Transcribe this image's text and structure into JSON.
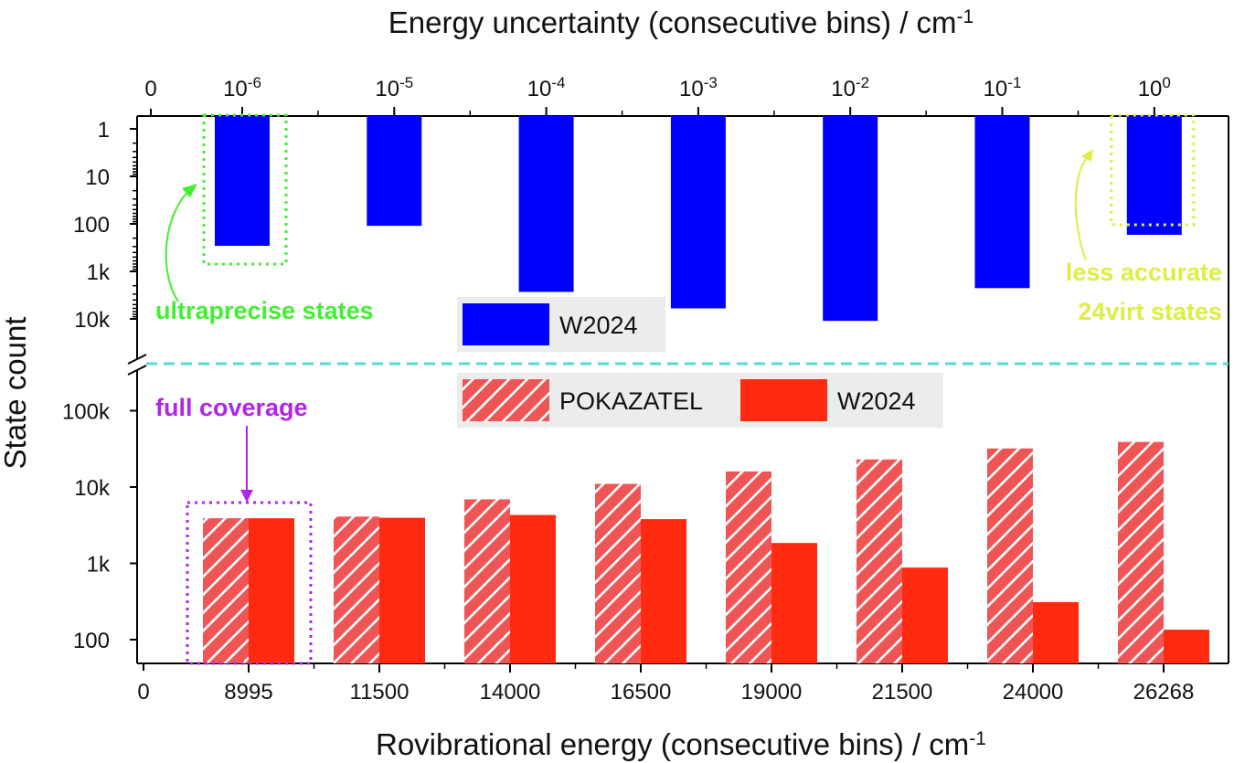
{
  "chart_data": {
    "type": "bar",
    "y_axis_title": "State count",
    "y_scale": "log",
    "axis_break": true,
    "top_panel": {
      "x_axis_title": "Energy uncertainty (consecutive bins) / cm",
      "x_axis_title_superscript": "-1",
      "y_direction": "inverted",
      "y_ticks": [
        "1",
        "10",
        "100",
        "1k",
        "10k"
      ],
      "categories": [
        {
          "base": "10",
          "exp": "-6"
        },
        {
          "base": "10",
          "exp": "-5"
        },
        {
          "base": "10",
          "exp": "-4"
        },
        {
          "base": "10",
          "exp": "-3"
        },
        {
          "base": "10",
          "exp": "-2"
        },
        {
          "base": "10",
          "exp": "-1"
        },
        {
          "base": "10",
          "exp": "0"
        }
      ],
      "origin_label": "0",
      "series": [
        {
          "name": "W2024",
          "color": "#0000ff",
          "values": [
            290,
            110,
            2700,
            6000,
            11000,
            2250,
            170
          ]
        }
      ],
      "legend": [
        {
          "label": "W2024",
          "style": "solid",
          "color": "#0000ff"
        }
      ],
      "annotations": [
        {
          "text": "ultraprecise states",
          "color": "#44ee33",
          "target_category": 0
        },
        {
          "lines": [
            "less accurate",
            "24virt states"
          ],
          "color": "#ddee44",
          "target_category": 6
        }
      ]
    },
    "bottom_panel": {
      "x_axis_title": "Rovibrational energy (consecutive bins) / cm",
      "x_axis_title_superscript": "-1",
      "y_ticks": [
        "100",
        "1k",
        "10k",
        "100k"
      ],
      "categories": [
        "8995",
        "11500",
        "14000",
        "16500",
        "19000",
        "21500",
        "24000",
        "26268"
      ],
      "origin_label": "0",
      "series": [
        {
          "name": "POKAZATEL",
          "style": "hatched",
          "color": "#f05555",
          "values": [
            3900,
            4100,
            6900,
            11000,
            16000,
            23000,
            32000,
            39000
          ]
        },
        {
          "name": "W2024",
          "style": "solid",
          "color": "#ff2a10",
          "values": [
            3900,
            3950,
            4300,
            3800,
            1850,
            880,
            310,
            135
          ]
        }
      ],
      "legend": [
        {
          "label": "POKAZATEL",
          "style": "hatched",
          "color": "#f05555"
        },
        {
          "label": "W2024",
          "style": "solid",
          "color": "#ff2a10"
        }
      ],
      "annotations": [
        {
          "text": "full coverage",
          "color": "#b026e8",
          "target_category": 0
        }
      ]
    },
    "grid": false
  }
}
